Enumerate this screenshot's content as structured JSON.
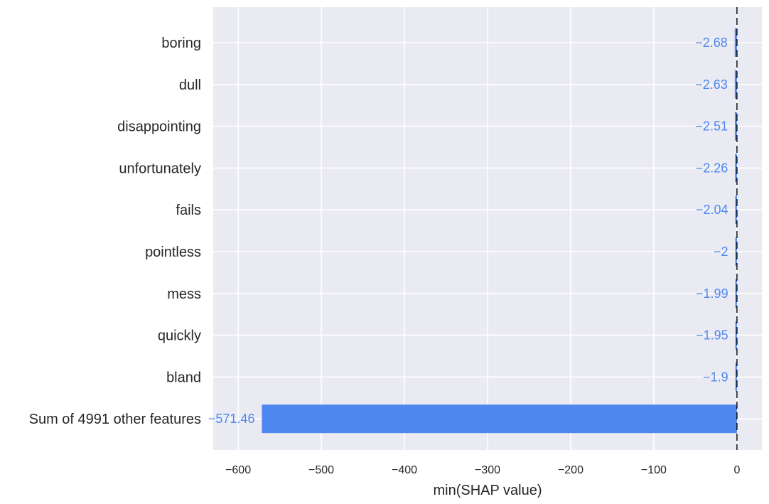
{
  "chart_data": {
    "type": "bar",
    "orientation": "horizontal",
    "categories": [
      "boring",
      "dull",
      "disappointing",
      "unfortunately",
      "fails",
      "pointless",
      "mess",
      "quickly",
      "bland",
      "Sum of 4991 other features"
    ],
    "values": [
      -2.68,
      -2.63,
      -2.51,
      -2.26,
      -2.04,
      -2,
      -1.99,
      -1.95,
      -1.9,
      -571.46
    ],
    "value_labels": [
      "−2.68",
      "−2.63",
      "−2.51",
      "−2.26",
      "−2.04",
      "−2",
      "−1.99",
      "−1.95",
      "−1.9",
      "−571.46"
    ],
    "xlabel": "min(SHAP value)",
    "xlim": [
      -630,
      30
    ],
    "xticks": [
      -600,
      -500,
      -400,
      -300,
      -200,
      -100,
      0
    ],
    "xtick_labels": [
      "−600",
      "−500",
      "−400",
      "−300",
      "−200",
      "−100",
      "0"
    ],
    "grid": true,
    "reference_line": 0,
    "colors": {
      "bar": "#4e87f0",
      "value_label": "#4e87f0",
      "plot_background": "#eaeaf2",
      "grid": "#ffffff",
      "zero_line": "#000000"
    }
  }
}
